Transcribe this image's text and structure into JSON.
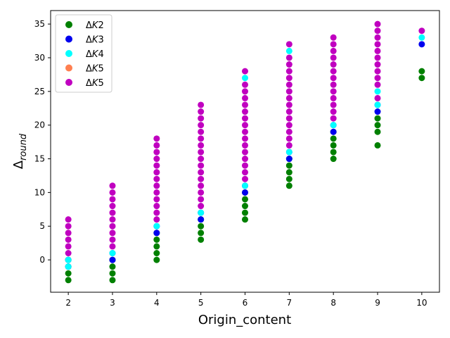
{
  "chart_data": {
    "type": "scatter",
    "title": "",
    "xlabel": "Origin_content",
    "ylabel_base": "Δ",
    "ylabel_sub": "round",
    "xlim": [
      1.6,
      10.4
    ],
    "ylim": [
      -4.8,
      37.0
    ],
    "x_ticks": [
      2,
      3,
      4,
      5,
      6,
      7,
      8,
      9,
      10
    ],
    "y_ticks": [
      0,
      5,
      10,
      15,
      20,
      25,
      30,
      35
    ],
    "grid": false,
    "legend_placement": "top-left",
    "series": [
      {
        "name": "ΔK2",
        "name_base": "Δ",
        "name_var": "K",
        "name_num": "2",
        "color": "#008000",
        "points": [
          [
            2,
            -3
          ],
          [
            2,
            -2
          ],
          [
            2,
            -1
          ],
          [
            2,
            0
          ],
          [
            3,
            -3
          ],
          [
            3,
            -2
          ],
          [
            3,
            -1
          ],
          [
            3,
            0
          ],
          [
            4,
            0
          ],
          [
            4,
            1
          ],
          [
            4,
            2
          ],
          [
            4,
            3
          ],
          [
            4,
            4
          ],
          [
            5,
            3
          ],
          [
            5,
            4
          ],
          [
            5,
            5
          ],
          [
            5,
            6
          ],
          [
            6,
            6
          ],
          [
            6,
            7
          ],
          [
            6,
            8
          ],
          [
            6,
            9
          ],
          [
            6,
            10
          ],
          [
            7,
            11
          ],
          [
            7,
            12
          ],
          [
            7,
            13
          ],
          [
            7,
            14
          ],
          [
            7,
            15
          ],
          [
            8,
            15
          ],
          [
            8,
            16
          ],
          [
            8,
            17
          ],
          [
            8,
            18
          ],
          [
            8,
            19
          ],
          [
            9,
            17
          ],
          [
            9,
            19
          ],
          [
            9,
            20
          ],
          [
            9,
            21
          ],
          [
            10,
            27
          ],
          [
            10,
            28
          ]
        ]
      },
      {
        "name": "ΔK3",
        "name_base": "Δ",
        "name_var": "K",
        "name_num": "3",
        "color": "#0000ee",
        "points": [
          [
            2,
            -1
          ],
          [
            2,
            0
          ],
          [
            3,
            0
          ],
          [
            3,
            1
          ],
          [
            4,
            4
          ],
          [
            4,
            5
          ],
          [
            5,
            6
          ],
          [
            5,
            7
          ],
          [
            6,
            10
          ],
          [
            6,
            11
          ],
          [
            7,
            15
          ],
          [
            7,
            16
          ],
          [
            8,
            19
          ],
          [
            8,
            20
          ],
          [
            9,
            22
          ],
          [
            9,
            23
          ],
          [
            10,
            32
          ]
        ]
      },
      {
        "name": "ΔK4",
        "name_base": "Δ",
        "name_var": "K",
        "name_num": "4",
        "color": "#00ffff",
        "points": [
          [
            2,
            -1
          ],
          [
            2,
            0
          ],
          [
            3,
            1
          ],
          [
            4,
            5
          ],
          [
            5,
            7
          ],
          [
            6,
            11
          ],
          [
            6,
            27
          ],
          [
            7,
            16
          ],
          [
            7,
            31
          ],
          [
            8,
            20
          ],
          [
            9,
            23
          ],
          [
            9,
            25
          ],
          [
            10,
            33
          ]
        ]
      },
      {
        "name": "ΔK5",
        "name_base": "Δ",
        "name_var": "K",
        "name_num": "5",
        "color": "#ff7f50",
        "points": []
      },
      {
        "name": "ΔK5",
        "name_base": "Δ",
        "name_var": "K",
        "name_num": "5",
        "color": "#c000c0",
        "points": [
          [
            2,
            1
          ],
          [
            2,
            2
          ],
          [
            2,
            3
          ],
          [
            2,
            4
          ],
          [
            2,
            5
          ],
          [
            2,
            6
          ],
          [
            3,
            2
          ],
          [
            3,
            3
          ],
          [
            3,
            4
          ],
          [
            3,
            5
          ],
          [
            3,
            6
          ],
          [
            3,
            7
          ],
          [
            3,
            8
          ],
          [
            3,
            9
          ],
          [
            3,
            10
          ],
          [
            3,
            11
          ],
          [
            4,
            6
          ],
          [
            4,
            7
          ],
          [
            4,
            8
          ],
          [
            4,
            9
          ],
          [
            4,
            10
          ],
          [
            4,
            11
          ],
          [
            4,
            12
          ],
          [
            4,
            13
          ],
          [
            4,
            14
          ],
          [
            4,
            15
          ],
          [
            4,
            16
          ],
          [
            4,
            17
          ],
          [
            4,
            18
          ],
          [
            5,
            8
          ],
          [
            5,
            9
          ],
          [
            5,
            10
          ],
          [
            5,
            11
          ],
          [
            5,
            12
          ],
          [
            5,
            13
          ],
          [
            5,
            14
          ],
          [
            5,
            15
          ],
          [
            5,
            16
          ],
          [
            5,
            17
          ],
          [
            5,
            18
          ],
          [
            5,
            19
          ],
          [
            5,
            20
          ],
          [
            5,
            21
          ],
          [
            5,
            22
          ],
          [
            5,
            23
          ],
          [
            6,
            12
          ],
          [
            6,
            13
          ],
          [
            6,
            14
          ],
          [
            6,
            15
          ],
          [
            6,
            16
          ],
          [
            6,
            17
          ],
          [
            6,
            18
          ],
          [
            6,
            19
          ],
          [
            6,
            20
          ],
          [
            6,
            21
          ],
          [
            6,
            22
          ],
          [
            6,
            23
          ],
          [
            6,
            24
          ],
          [
            6,
            25
          ],
          [
            6,
            26
          ],
          [
            6,
            28
          ],
          [
            7,
            17
          ],
          [
            7,
            18
          ],
          [
            7,
            19
          ],
          [
            7,
            20
          ],
          [
            7,
            21
          ],
          [
            7,
            22
          ],
          [
            7,
            23
          ],
          [
            7,
            24
          ],
          [
            7,
            25
          ],
          [
            7,
            26
          ],
          [
            7,
            27
          ],
          [
            7,
            28
          ],
          [
            7,
            29
          ],
          [
            7,
            30
          ],
          [
            7,
            32
          ],
          [
            8,
            21
          ],
          [
            8,
            22
          ],
          [
            8,
            23
          ],
          [
            8,
            24
          ],
          [
            8,
            25
          ],
          [
            8,
            26
          ],
          [
            8,
            27
          ],
          [
            8,
            28
          ],
          [
            8,
            29
          ],
          [
            8,
            30
          ],
          [
            8,
            31
          ],
          [
            8,
            32
          ],
          [
            8,
            33
          ],
          [
            9,
            24
          ],
          [
            9,
            26
          ],
          [
            9,
            27
          ],
          [
            9,
            28
          ],
          [
            9,
            29
          ],
          [
            9,
            30
          ],
          [
            9,
            31
          ],
          [
            9,
            32
          ],
          [
            9,
            33
          ],
          [
            9,
            34
          ],
          [
            9,
            35
          ],
          [
            10,
            34
          ]
        ]
      }
    ]
  }
}
